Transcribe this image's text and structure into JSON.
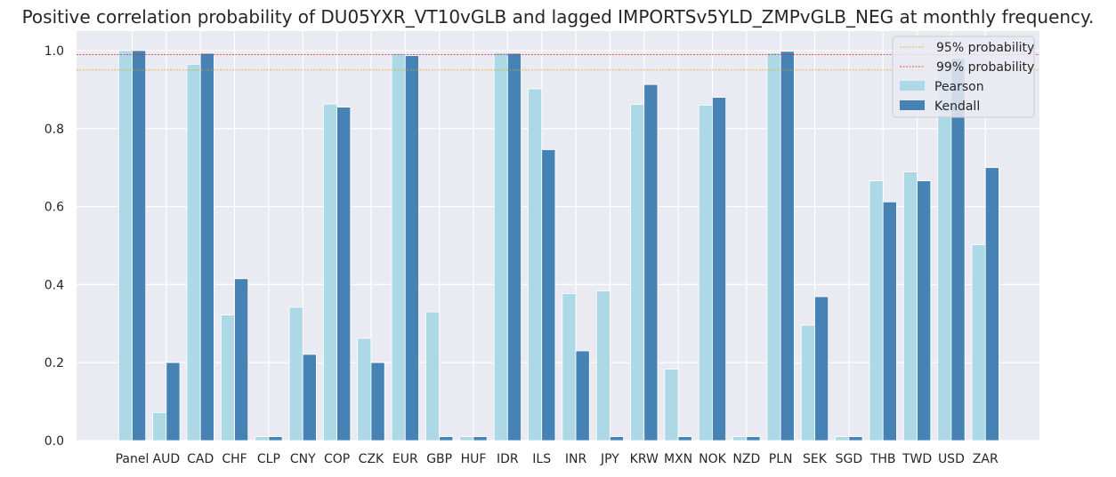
{
  "chart_data": {
    "type": "bar",
    "title": "Positive correlation probability of DU05YXR_VT10vGLB and lagged IMPORTSv5YLD_ZMPvGLB_NEG at monthly frequency.",
    "xlabel": "",
    "ylabel": "",
    "ylim": [
      0,
      1.05
    ],
    "yticks": [
      0.0,
      0.2,
      0.4,
      0.6,
      0.8,
      1.0
    ],
    "ytick_labels": [
      "0.0",
      "0.2",
      "0.4",
      "0.6",
      "0.8",
      "1.0"
    ],
    "grid": true,
    "legend_position": "top-right",
    "categories": [
      "Panel",
      "AUD",
      "CAD",
      "CHF",
      "CLP",
      "CNY",
      "COP",
      "CZK",
      "EUR",
      "GBP",
      "HUF",
      "IDR",
      "ILS",
      "INR",
      "JPY",
      "KRW",
      "MXN",
      "NOK",
      "NZD",
      "PLN",
      "SEK",
      "SGD",
      "THB",
      "TWD",
      "USD",
      "ZAR"
    ],
    "series": [
      {
        "name": "Pearson",
        "color": "#add8e6",
        "values": [
          1.0,
          0.072,
          0.965,
          0.322,
          0.01,
          0.342,
          0.863,
          0.262,
          0.993,
          0.33,
          0.01,
          0.995,
          0.902,
          0.377,
          0.384,
          0.862,
          0.183,
          0.86,
          0.01,
          0.994,
          0.296,
          0.01,
          0.666,
          0.689,
          0.975,
          0.502
        ]
      },
      {
        "name": "Kendall",
        "color": "#4682b4",
        "values": [
          1.0,
          0.2,
          0.993,
          0.415,
          0.01,
          0.221,
          0.855,
          0.2,
          0.987,
          0.01,
          0.01,
          0.993,
          0.746,
          0.23,
          0.01,
          0.913,
          0.01,
          0.88,
          0.01,
          0.998,
          0.369,
          0.01,
          0.612,
          0.666,
          0.98,
          0.7
        ]
      }
    ],
    "reference_lines": [
      {
        "name": "95% probability",
        "value": 0.95,
        "color": "#e6a020"
      },
      {
        "name": "99% probability",
        "value": 0.99,
        "color": "#d62728"
      }
    ]
  }
}
